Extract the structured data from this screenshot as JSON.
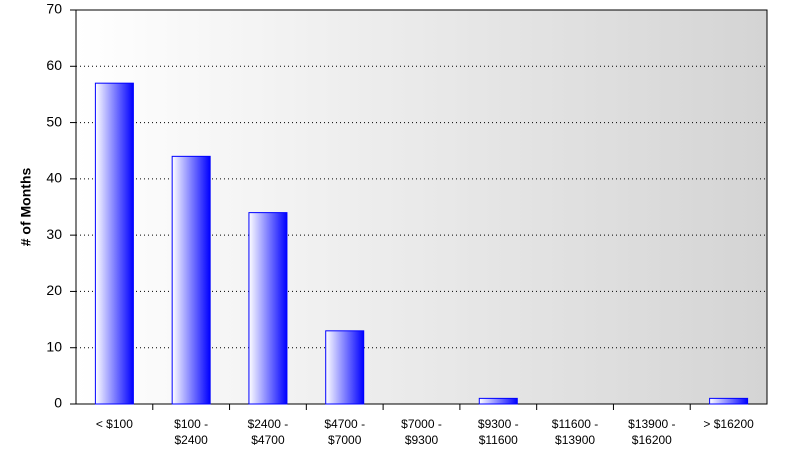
{
  "chart_data": {
    "type": "bar",
    "y_label": "# of Months",
    "categories": [
      "< $100",
      "$100 - $2400",
      "$2400 - $4700",
      "$4700 - $7000",
      "$7000 - $9300",
      "$9300 - $11600",
      "$11600 - $13900",
      "$13900 - $16200",
      "> $16200"
    ],
    "values": [
      57,
      44,
      34,
      13,
      0,
      1,
      0,
      0,
      1
    ],
    "color": "#0000ff",
    "ylim": [
      0,
      70
    ],
    "yticks": [
      0,
      10,
      20,
      30,
      40,
      50,
      60,
      70
    ],
    "grid": true
  }
}
